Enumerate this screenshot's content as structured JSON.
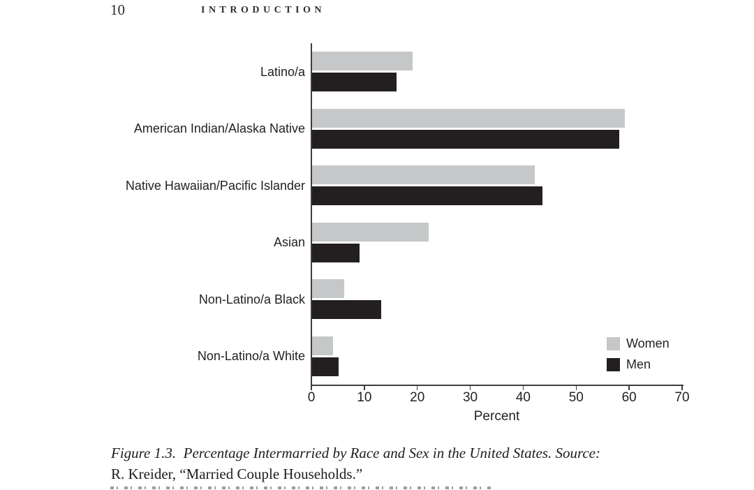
{
  "page": {
    "page_number": "10",
    "running_head": "INTRODUCTION"
  },
  "chart_data": {
    "type": "bar",
    "orientation": "horizontal",
    "categories": [
      "Latino/a",
      "American Indian/Alaska Native",
      "Native Hawaiian/Pacific Islander",
      "Asian",
      "Non-Latino/a Black",
      "Non-Latino/a White"
    ],
    "series": [
      {
        "name": "Women",
        "color": "#c6c7c9",
        "values": [
          19,
          59,
          42,
          22,
          6,
          4
        ]
      },
      {
        "name": "Men",
        "color": "#231f20",
        "values": [
          16,
          58,
          43.5,
          9,
          13,
          5
        ]
      }
    ],
    "xlabel": "Percent",
    "xlim": [
      0,
      70
    ],
    "xticks": [
      0,
      10,
      20,
      30,
      40,
      50,
      60,
      70
    ],
    "grid": false,
    "legend_position": "inside-bottom-right",
    "axis_color": "#3d3d3f"
  },
  "caption": {
    "line1": "Figure 1.3.  Percentage Intermarried by Race and Sex in the United States. Source:",
    "line2": "R. Kreider, “Married Couple Households.”"
  }
}
